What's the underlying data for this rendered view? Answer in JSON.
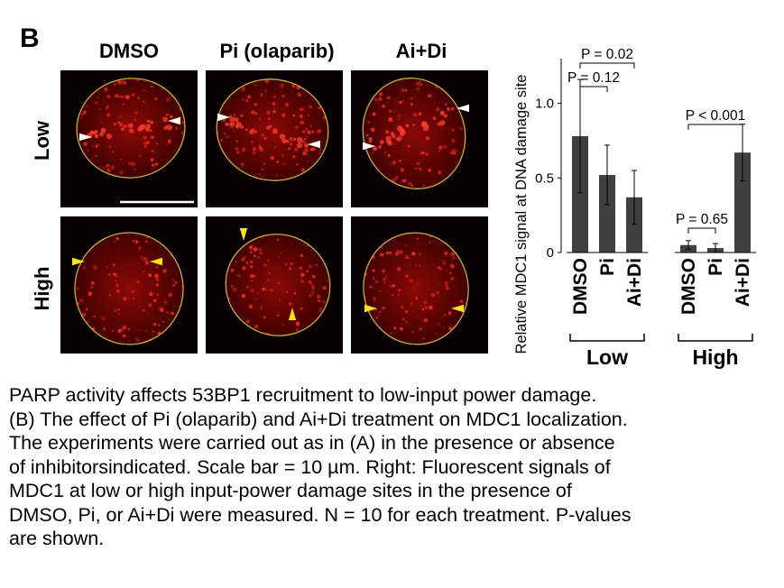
{
  "figure": {
    "panel_label": "B",
    "columns": [
      "DMSO",
      "Pi (olaparib)",
      "Ai+Di"
    ],
    "rows": [
      "Low",
      "High"
    ],
    "caption_lines": [
      "PARP activity affects 53BP1 recruitment to low-input power damage.",
      "(B) The effect of Pi (olaparib) and Ai+Di treatment on MDC1 localization.",
      "The experiments were carried out as in (A) in the presence or absence",
      "of inhibitorsindicated. Scale bar = 10 µm. Right: Fluorescent signals of",
      "MDC1 at low or high input-power damage sites in the presence of",
      "DMSO, Pi, or Ai+Di were measured. N = 10 for each treatment. P-values",
      "are shown."
    ]
  },
  "colors": {
    "bar": "#404040",
    "nucleus_outline": "#c8b21e",
    "arrow_low": "#ffffff",
    "arrow_high": "#ffe600",
    "signal": "#ff2a1a"
  },
  "chart_data": {
    "type": "bar",
    "ylabel": "Relative MDC1 signal at DNA damage site",
    "ylim": [
      0,
      1.3
    ],
    "yticks": [
      0,
      0.5,
      1.0
    ],
    "ytick_labels": [
      "0",
      "0.5",
      "1.0"
    ],
    "groups": [
      {
        "name": "Low",
        "categories": [
          "DMSO",
          "Pi",
          "Ai+Di"
        ],
        "values": [
          0.78,
          0.52,
          0.37
        ],
        "errors": [
          0.38,
          0.2,
          0.18
        ]
      },
      {
        "name": "High",
        "categories": [
          "DMSO",
          "Pi",
          "Ai+Di"
        ],
        "values": [
          0.05,
          0.03,
          0.67
        ],
        "errors": [
          0.03,
          0.03,
          0.19
        ]
      }
    ],
    "annotations": [
      {
        "text": "P = 0.02",
        "group": 0,
        "from": 0,
        "to": 2
      },
      {
        "text": "P = 0.12",
        "group": 0,
        "from": 0,
        "to": 1
      },
      {
        "text": "P < 0.001",
        "group": 1,
        "from": 0,
        "to": 2
      },
      {
        "text": "P = 0.65",
        "group": 1,
        "from": 0,
        "to": 1
      }
    ]
  }
}
